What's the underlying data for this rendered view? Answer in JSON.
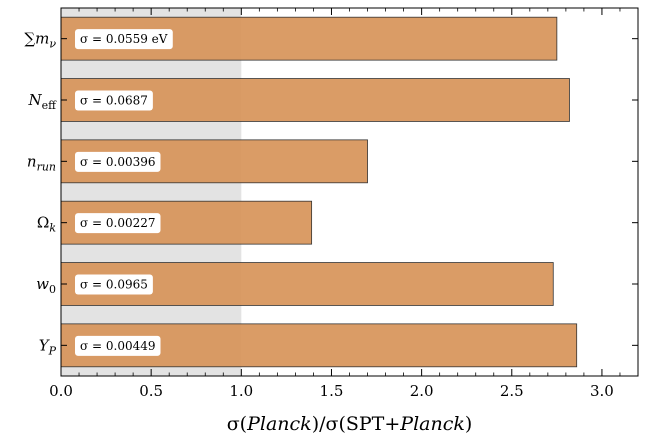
{
  "chart_data": {
    "type": "bar",
    "orientation": "horizontal",
    "categories": [
      "∑m_ν",
      "N_eff",
      "n_run",
      "Ω_k",
      "w_0",
      "Y_P"
    ],
    "category_display": [
      {
        "main": "∑m",
        "sub": "ν"
      },
      {
        "main": "N",
        "sub": "eff"
      },
      {
        "main": "n",
        "sub": "run"
      },
      {
        "main": "Ω",
        "sub": "k"
      },
      {
        "main": "w",
        "sub": "0"
      },
      {
        "main": "Y",
        "sub": "P"
      }
    ],
    "values": [
      2.75,
      2.82,
      1.7,
      1.39,
      2.73,
      2.86
    ],
    "data_labels": [
      "σ = 0.0559 eV",
      "σ = 0.0687",
      "σ = 0.00396",
      "σ = 0.00227",
      "σ = 0.0965",
      "σ = 0.00449"
    ],
    "xlim": [
      0.0,
      3.2
    ],
    "xticks": [
      "0.0",
      "0.5",
      "1.0",
      "1.5",
      "2.0",
      "2.5",
      "3.0"
    ],
    "xtick_values": [
      0.0,
      0.5,
      1.0,
      1.5,
      2.0,
      2.5,
      3.0
    ],
    "xlabel": "σ(Planck)/σ(SPT+Planck)",
    "shaded_region": [
      0.0,
      1.0
    ],
    "bar_color": "#d7955a",
    "shade_color": "#e3e3e3",
    "grid": false,
    "legend": "none"
  }
}
